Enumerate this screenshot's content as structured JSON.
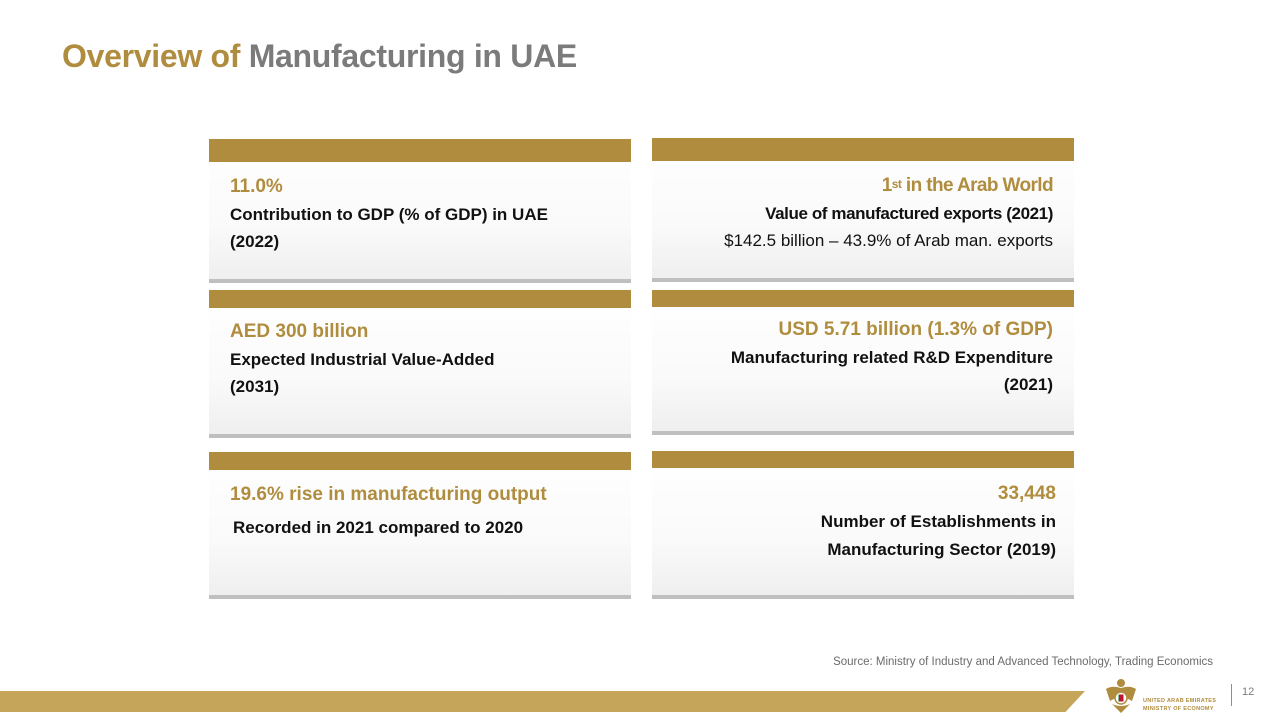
{
  "slide": {
    "title_part1": "Overview of",
    "title_part2": "Manufacturing in UAE"
  },
  "cards": [
    {
      "headline": "11.0%",
      "description": "Contribution  to GDP (% of GDP) in UAE (2022)"
    },
    {
      "headline_num": "1",
      "headline_sup": "st",
      "headline_rest": " in the Arab World",
      "description": "Value of manufactured exports (2021)",
      "detail": "$142.5  billion – 43.9%  of Arab man.  exports"
    },
    {
      "headline": "AED 300 billion",
      "description_line1": "Expected Industrial Value-Added",
      "description_line2": "(2031)"
    },
    {
      "headline": "USD 5.71 billion (1.3% of GDP)",
      "description_line1": "Manufacturing  related R&D Expenditure",
      "description_line2": "(2021)"
    },
    {
      "headline": "19.6% rise in manufacturing output",
      "description": "Recorded in 2021 compared to 2020"
    },
    {
      "headline": "33,448",
      "description_line1": "Number of Establishments  in",
      "description_line2": "Manufacturing  Sector (2019)"
    }
  ],
  "source": "Source: Ministry of Industry and Advanced Technology, Trading Economics",
  "footer": {
    "org_line1": "UNITED ARAB EMIRATES",
    "org_line2": "MINISTRY OF ECONOMY",
    "page_number": "12"
  },
  "colors": {
    "gold": "#b08d3e",
    "footer_gold": "#c5a55a",
    "gray_title": "#7b7b7b"
  }
}
